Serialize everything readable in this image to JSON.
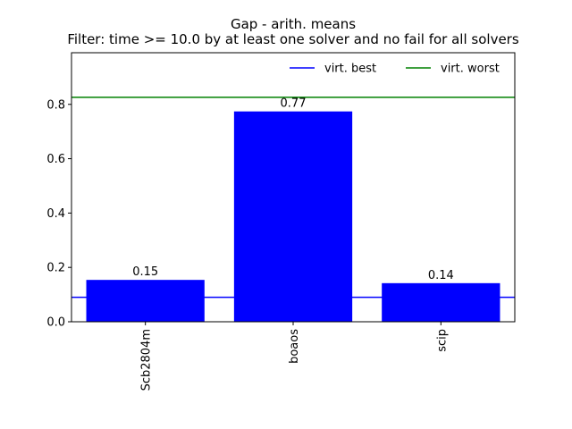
{
  "chart_data": {
    "type": "bar",
    "title": "Gap - arith. means",
    "subtitle": "Filter: time >= 10.0 by at least one solver and no fail for all solvers",
    "xlabel": "",
    "ylabel": "",
    "categories": [
      "Scb2804m",
      "boaos",
      "scip"
    ],
    "values": [
      0.154,
      0.774,
      0.142
    ],
    "value_labels": [
      "0.15",
      "0.77",
      "0.14"
    ],
    "ylim": [
      0,
      0.99
    ],
    "yticks": [
      0.0,
      0.2,
      0.4,
      0.6,
      0.8
    ],
    "ytick_labels": [
      "0.0",
      "0.2",
      "0.4",
      "0.6",
      "0.8"
    ],
    "bar_color": "#0000ff",
    "grid": false,
    "legend_position": "top-right",
    "reference_lines": [
      {
        "name": "virt. best",
        "value": 0.09,
        "color": "#0000ff"
      },
      {
        "name": "virt. worst",
        "value": 0.826,
        "color": "#008000"
      }
    ]
  }
}
